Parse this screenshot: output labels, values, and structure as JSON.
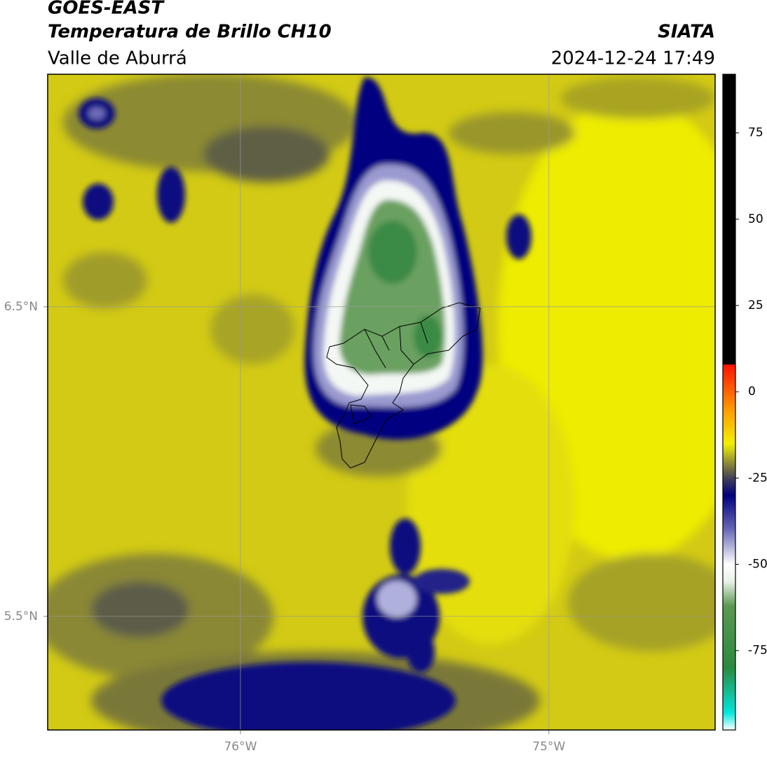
{
  "header": {
    "source": "GOES-EAST",
    "title": "Temperatura de Brillo CH10",
    "region": "Valle de Aburrá",
    "agency": "SIATA",
    "datetime": "2024-12-24 17:49"
  },
  "map": {
    "xlim": [
      -76.625,
      -74.461
    ],
    "ylim": [
      5.133,
      7.251
    ],
    "xticks": [
      {
        "value": -76,
        "label": "76°W"
      },
      {
        "value": -75,
        "label": "75°W"
      }
    ],
    "yticks": [
      {
        "value": 6.5,
        "label": "6.5°N"
      },
      {
        "value": 5.5,
        "label": "5.5°N"
      }
    ],
    "grid": true
  },
  "colorbar": {
    "ylim": [
      -98,
      92
    ],
    "yticks": [
      75,
      50,
      25,
      0,
      -25,
      -50,
      -75
    ],
    "stops": [
      {
        "value": -98,
        "color": "#ffffff"
      },
      {
        "value": -93,
        "color": "#00e8dc"
      },
      {
        "value": -80,
        "color": "#2a8a40"
      },
      {
        "value": -62,
        "color": "#5a9a50"
      },
      {
        "value": -55,
        "color": "#e8f0e8"
      },
      {
        "value": -50,
        "color": "#ffffff"
      },
      {
        "value": -40,
        "color": "#6a6ab8"
      },
      {
        "value": -30,
        "color": "#000080"
      },
      {
        "value": -25,
        "color": "#404058"
      },
      {
        "value": -19,
        "color": "#a8a828"
      },
      {
        "value": -15,
        "color": "#f4f000"
      },
      {
        "value": -5,
        "color": "#ff9a00"
      },
      {
        "value": 8,
        "color": "#ff1000"
      },
      {
        "value": 8,
        "color": "#000000"
      },
      {
        "value": 92,
        "color": "#000000"
      }
    ]
  }
}
